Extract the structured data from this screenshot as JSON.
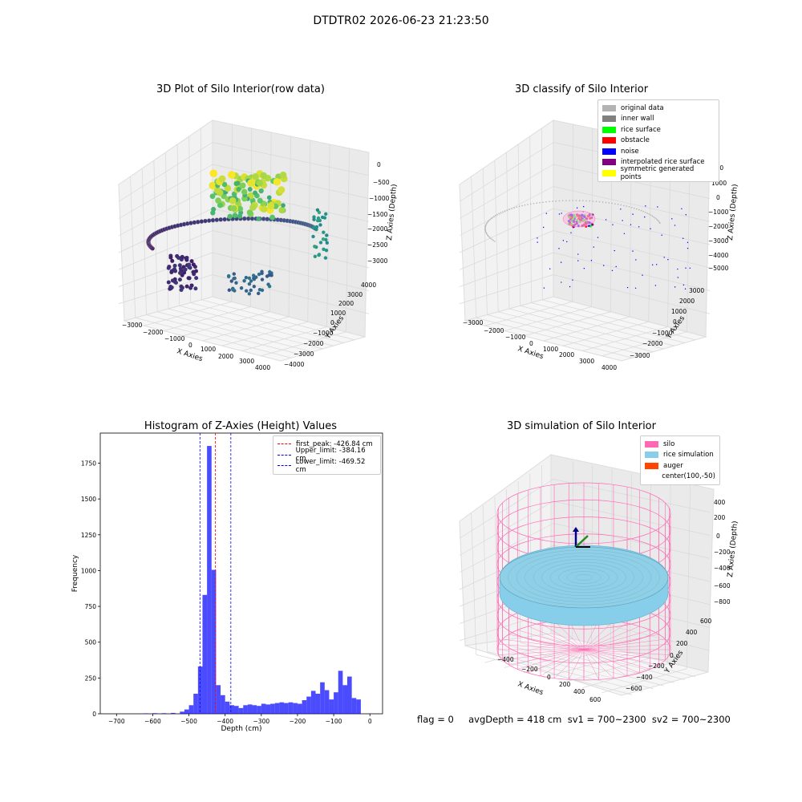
{
  "figure": {
    "suptitle": "DTDTR02 2026-06-23 21:23:50",
    "footer": "flag = 0     avgDepth = 418 cm  sv1 = 700~2300  sv2 = 700~2300"
  },
  "panel1": {
    "title": "3D Plot of Silo Interior(row data)",
    "xlabel": "X Axies",
    "ylabel": "Y Axies",
    "zlabel": "Z Axies (Depth)",
    "xticks": [
      "−3000",
      "−2000",
      "−1000",
      "0",
      "1000",
      "2000",
      "3000",
      "4000"
    ],
    "yticks": [
      "−4000",
      "−3000",
      "−2000",
      "−1000",
      "0",
      "1000",
      "2000",
      "3000",
      "4000"
    ],
    "zticks": [
      "0",
      "−500",
      "−1000",
      "−1500",
      "−2000",
      "−2500",
      "−3000"
    ]
  },
  "panel2": {
    "title": "3D classify of Silo Interior",
    "xlabel": "X Axies",
    "ylabel": "Y Axies",
    "zlabel": "Z Axies (Depth)",
    "xticks": [
      "−3000",
      "−2000",
      "−1000",
      "0",
      "1000",
      "2000",
      "3000",
      "4000"
    ],
    "yticks": [
      "−3000",
      "−2000",
      "−1000",
      "0",
      "1000",
      "2000",
      "3000"
    ],
    "zticks": [
      "2000",
      "1000",
      "0",
      "−1000",
      "−2000",
      "−3000",
      "−4000",
      "−5000"
    ],
    "legend": [
      {
        "label": "original data",
        "color": "#b3b3b3"
      },
      {
        "label": "inner wall",
        "color": "#808080"
      },
      {
        "label": "rice surface",
        "color": "#00ff00"
      },
      {
        "label": "obstacle",
        "color": "#ff0000"
      },
      {
        "label": "noise",
        "color": "#0000ff"
      },
      {
        "label": "interpolated rice surface",
        "color": "#800080"
      },
      {
        "label": "symmetric generated points",
        "color": "#ffff00"
      }
    ]
  },
  "panel3": {
    "title": "Histogram of Z-Axies (Height) Values",
    "xlabel": "Depth (cm)",
    "ylabel": "Frequency"
  },
  "panel4": {
    "title": "3D simulation of Silo Interior",
    "xlabel": "X Axies",
    "ylabel": "Y Axies",
    "zlabel": "Z Axies (Depth)",
    "xticks": [
      "−400",
      "−200",
      "0",
      "200",
      "400",
      "600"
    ],
    "yticks": [
      "−600",
      "−400",
      "−200",
      "0",
      "200",
      "400",
      "600"
    ],
    "zticks": [
      "400",
      "200",
      "0",
      "−200",
      "−400",
      "−600",
      "−800"
    ],
    "legend": [
      {
        "label": "silo",
        "color": "#ff69b4"
      },
      {
        "label": "rice simulation",
        "color": "#87ceeb"
      },
      {
        "label": "auger",
        "color": "#ff4500"
      },
      {
        "label": "center(100,-50)",
        "color": ""
      }
    ]
  },
  "chart_data": [
    {
      "type": "bar",
      "title": "Histogram of Z-Axies (Height) Values",
      "xlabel": "Depth (cm)",
      "ylabel": "Frequency",
      "xlim": [
        -745,
        35
      ],
      "ylim": [
        0,
        1960
      ],
      "xticks": [
        -700,
        -600,
        -500,
        -400,
        -300,
        -200,
        -100,
        0
      ],
      "yticks": [
        0,
        250,
        500,
        750,
        1000,
        1250,
        1500,
        1750
      ],
      "bin_width": 12.5,
      "bins": [
        [
          -625,
          3
        ],
        [
          -600,
          4
        ],
        [
          -575,
          4
        ],
        [
          -550,
          6
        ],
        [
          -525,
          15
        ],
        [
          -512.5,
          30
        ],
        [
          -500,
          60
        ],
        [
          -487.5,
          140
        ],
        [
          -475,
          330
        ],
        [
          -462.5,
          830
        ],
        [
          -450,
          1870
        ],
        [
          -437.5,
          1005
        ],
        [
          -425,
          200
        ],
        [
          -412.5,
          130
        ],
        [
          -400,
          85
        ],
        [
          -387.5,
          60
        ],
        [
          -375,
          55
        ],
        [
          -362.5,
          40
        ],
        [
          -350,
          60
        ],
        [
          -337.5,
          65
        ],
        [
          -325,
          60
        ],
        [
          -312.5,
          55
        ],
        [
          -300,
          70
        ],
        [
          -287.5,
          65
        ],
        [
          -275,
          70
        ],
        [
          -262.5,
          75
        ],
        [
          -250,
          80
        ],
        [
          -237.5,
          75
        ],
        [
          -225,
          80
        ],
        [
          -212.5,
          75
        ],
        [
          -200,
          70
        ],
        [
          -187.5,
          95
        ],
        [
          -175,
          120
        ],
        [
          -162.5,
          160
        ],
        [
          -150,
          140
        ],
        [
          -137.5,
          220
        ],
        [
          -125,
          165
        ],
        [
          -112.5,
          100
        ],
        [
          -100,
          150
        ],
        [
          -87.5,
          300
        ],
        [
          -75,
          200
        ],
        [
          -62.5,
          260
        ],
        [
          -50,
          110
        ],
        [
          -37.5,
          100
        ]
      ],
      "vlines": [
        {
          "x": -426.84,
          "label": "first_peak: -426.84 cm",
          "color": "#ff0000"
        },
        {
          "x": -384.16,
          "label": "Upper_limit: -384.16 cm",
          "color": "#0000ff"
        },
        {
          "x": -469.52,
          "label": "Lower_limit: -469.52 cm",
          "color": "#0000ff"
        }
      ],
      "legend_position": "upper right"
    }
  ]
}
